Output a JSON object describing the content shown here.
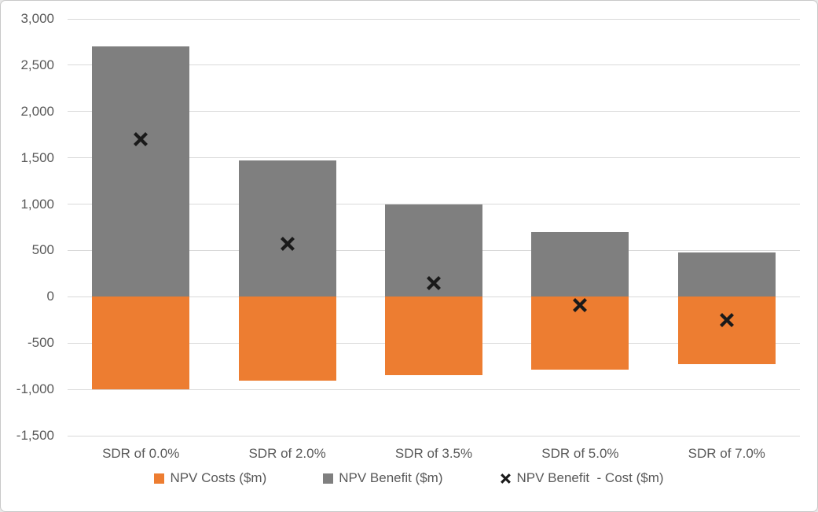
{
  "chart": {
    "background": "#ffffff",
    "frame_border_color": "#c9c9c9",
    "gridline_color": "#d9d9d9",
    "axis_label_color": "#595959",
    "costs_color": "#ed7d31",
    "benefit_color": "#7f7f7f",
    "marker_color": "#1a1a1a"
  },
  "chart_data": {
    "type": "bar",
    "title": "",
    "xlabel": "",
    "ylabel": "",
    "categories": [
      "SDR of 0.0%",
      "SDR of 2.0%",
      "SDR of 3.5%",
      "SDR of 5.0%",
      "SDR of 7.0%"
    ],
    "series": [
      {
        "name": "NPV Costs ($m)",
        "render": "bar",
        "color": "#ed7d31",
        "values": [
          -1000,
          -905,
          -850,
          -790,
          -730
        ]
      },
      {
        "name": "NPV Benefit ($m)",
        "render": "bar",
        "color": "#7f7f7f",
        "values": [
          2700,
          1475,
          1000,
          700,
          480
        ]
      },
      {
        "name": "NPV Benefit  - Cost ($m)",
        "render": "scatter-x-marker",
        "color": "#1a1a1a",
        "values": [
          1700,
          570,
          150,
          -90,
          -250
        ]
      }
    ],
    "ylim": [
      -1500,
      3000
    ],
    "ytick_step": 500,
    "ytick_labels": [
      "3,000",
      "2,500",
      "2,000",
      "1,500",
      "1,000",
      "500",
      "0",
      "-500",
      "-1,000",
      "-1,500"
    ],
    "grid": true,
    "legend_position": "bottom"
  }
}
